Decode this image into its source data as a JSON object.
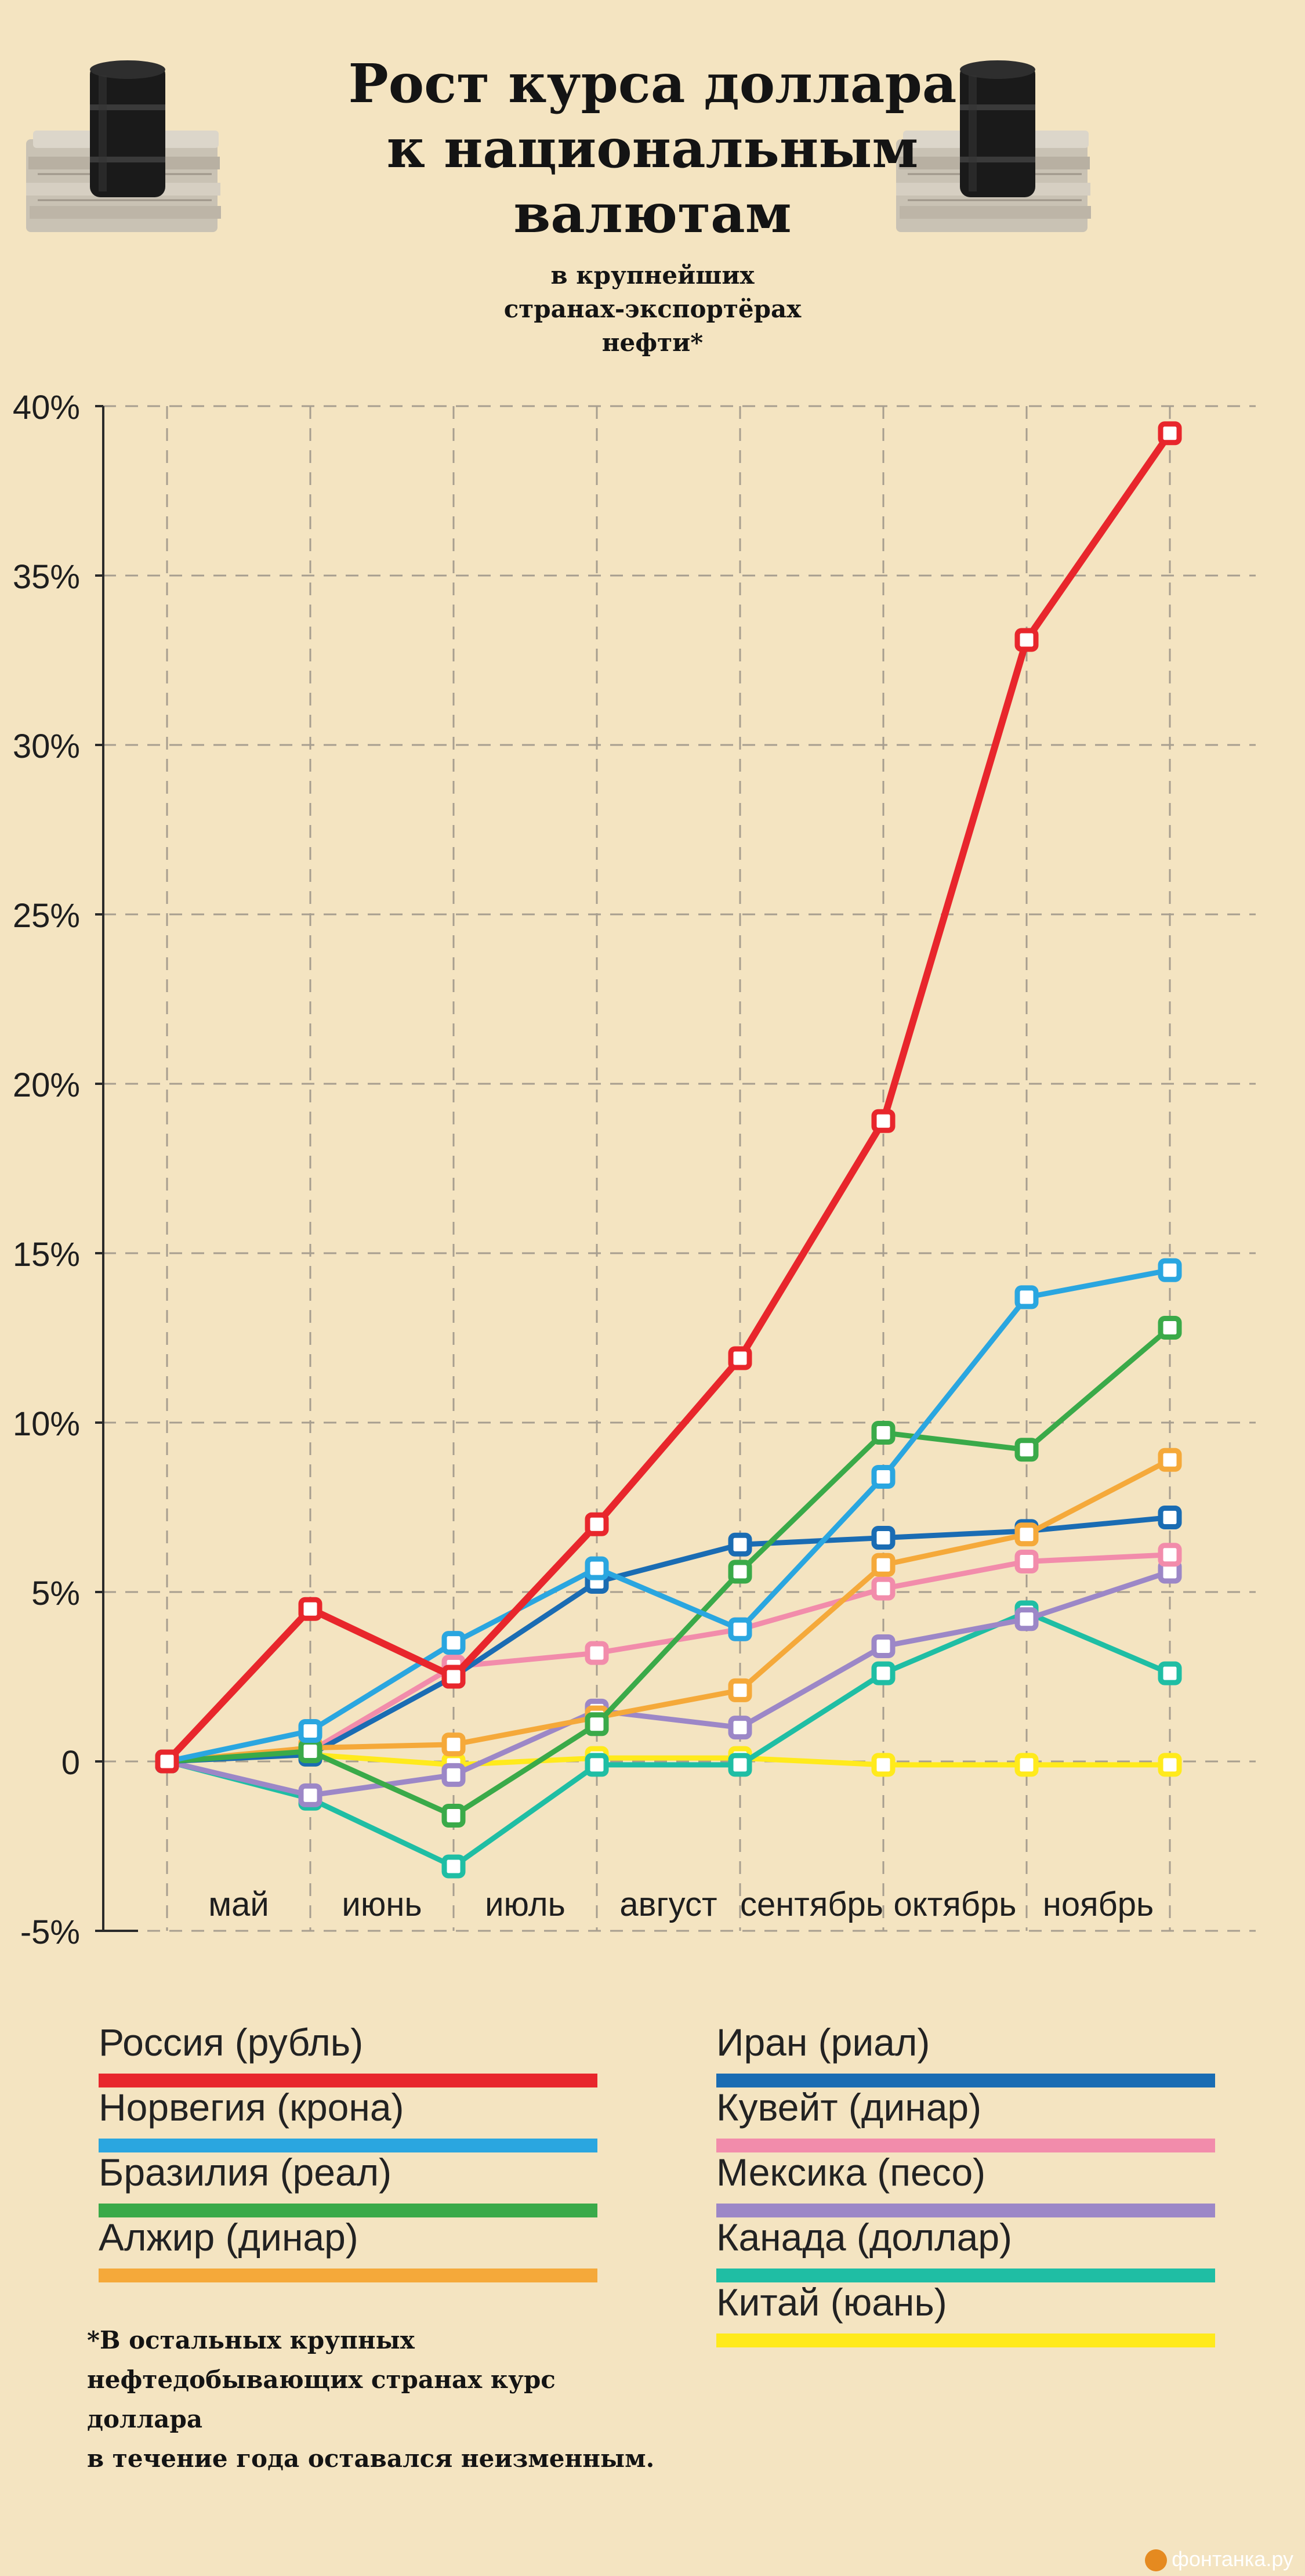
{
  "header": {
    "title_lines": [
      "Рост курса доллара",
      "к национальным",
      "валютам"
    ],
    "subtitle_lines": [
      "в крупнейших",
      "странах-экспортёрах",
      "нефти*"
    ]
  },
  "chart_data": {
    "type": "line",
    "title": "Рост курса доллара к национальным валютам",
    "subtitle": "в крупнейших странах-экспортёрах нефти*",
    "y_tick_labels": [
      "40%",
      "35%",
      "30%",
      "25%",
      "20%",
      "15%",
      "10%",
      "5%",
      "0",
      "-5%"
    ],
    "y_ticks": [
      40,
      35,
      30,
      25,
      20,
      15,
      10,
      5,
      0,
      -5
    ],
    "ylim": [
      -5,
      40
    ],
    "x_month_labels": [
      "май",
      "июнь",
      "июль",
      "август",
      "сентябрь",
      "октябрь",
      "ноябрь"
    ],
    "grid": true,
    "grid_style": "dashed",
    "legend_position": "bottom",
    "series": [
      {
        "name": "Россия (рубль)",
        "color": "#e8262c",
        "values": [
          0,
          4.5,
          2.5,
          7.0,
          11.9,
          18.9,
          33.1,
          39.2
        ]
      },
      {
        "name": "Норвегия (крона)",
        "color": "#2aa6e0",
        "values": [
          0,
          0.9,
          3.5,
          5.7,
          3.9,
          8.4,
          13.7,
          14.5
        ]
      },
      {
        "name": "Бразилия (реал)",
        "color": "#3aaa49",
        "values": [
          0,
          0.3,
          -1.6,
          1.1,
          5.6,
          9.7,
          9.2,
          12.8
        ]
      },
      {
        "name": "Алжир (динар)",
        "color": "#f5a93a",
        "values": [
          0,
          0.4,
          0.5,
          1.3,
          2.1,
          5.8,
          6.7,
          8.9
        ]
      },
      {
        "name": "Иран (риал)",
        "color": "#1a6cb3",
        "values": [
          0,
          0.2,
          2.5,
          5.3,
          6.4,
          6.6,
          6.8,
          7.2
        ]
      },
      {
        "name": "Кувейт (динар)",
        "color": "#f28cab",
        "values": [
          0,
          0.3,
          2.8,
          3.2,
          3.9,
          5.1,
          5.9,
          6.1
        ]
      },
      {
        "name": "Мексика (песо)",
        "color": "#9c87c7",
        "values": [
          0,
          -1.0,
          -0.4,
          1.5,
          1.0,
          3.4,
          4.2,
          5.6
        ]
      },
      {
        "name": "Канада (доллар)",
        "color": "#1fbea4",
        "values": [
          0,
          -1.1,
          -3.1,
          -0.1,
          -0.1,
          2.6,
          4.4,
          2.6
        ]
      },
      {
        "name": "Китай (юань)",
        "color": "#ffea1c",
        "values": [
          0,
          0.2,
          -0.1,
          0.1,
          0.1,
          -0.1,
          -0.1,
          -0.1
        ]
      }
    ]
  },
  "footnote_lines": [
    "*В остальных крупных",
    "нефтедобывающих странах курс доллара",
    "в течение года оставался неизменным."
  ],
  "source": "фонтанка.ру"
}
